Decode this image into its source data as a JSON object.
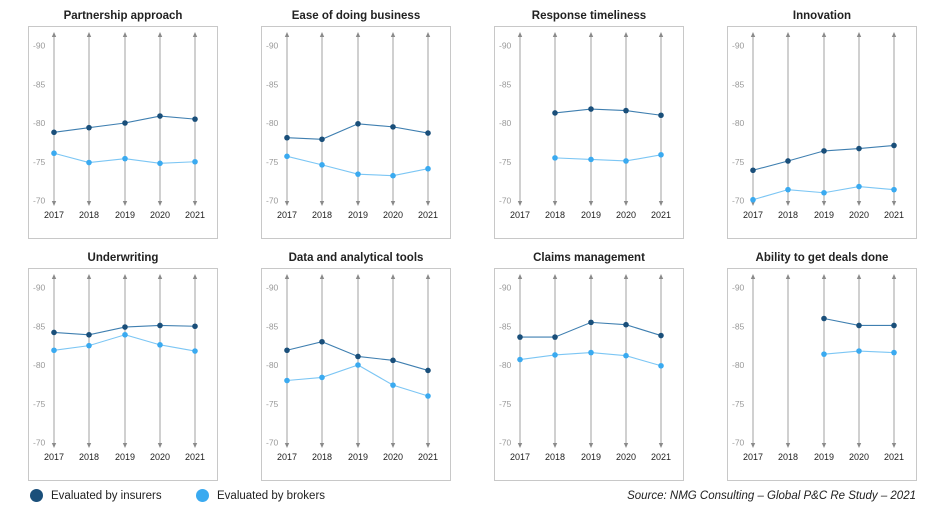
{
  "legend": {
    "insurers_label": "Evaluated by insurers",
    "brokers_label": "Evaluated by brokers",
    "insurers_color": "#1a4f7a",
    "brokers_color": "#3aaaf0"
  },
  "source": "Source: NMG Consulting – Global P&C Re Study – 2021",
  "chart_data": [
    {
      "type": "line",
      "title": "Partnership approach",
      "x": [
        "2017",
        "2018",
        "2019",
        "2020",
        "2021"
      ],
      "y_ticks": [
        "90",
        "85",
        "80",
        "75",
        "70"
      ],
      "ylim": [
        68,
        92
      ],
      "series": [
        {
          "name": "Evaluated by insurers",
          "values": [
            78.8,
            79.4,
            80.0,
            80.9,
            80.5
          ]
        },
        {
          "name": "Evaluated by brokers",
          "values": [
            76.1,
            74.9,
            75.4,
            74.8,
            75.0
          ]
        }
      ]
    },
    {
      "type": "line",
      "title": "Ease of doing business",
      "x": [
        "2017",
        "2018",
        "2019",
        "2020",
        "2021"
      ],
      "y_ticks": [
        "90",
        "85",
        "80",
        "75",
        "70"
      ],
      "ylim": [
        68,
        92
      ],
      "series": [
        {
          "name": "Evaluated by insurers",
          "values": [
            78.1,
            77.9,
            79.9,
            79.5,
            78.7
          ]
        },
        {
          "name": "Evaluated by brokers",
          "values": [
            75.7,
            74.6,
            73.4,
            73.2,
            74.1
          ]
        }
      ]
    },
    {
      "type": "line",
      "title": "Response timeliness",
      "x": [
        "2017",
        "2018",
        "2019",
        "2020",
        "2021"
      ],
      "y_ticks": [
        "90",
        "85",
        "80",
        "75",
        "70"
      ],
      "ylim": [
        68,
        92
      ],
      "series": [
        {
          "name": "Evaluated by insurers",
          "values": [
            null,
            81.3,
            81.8,
            81.6,
            81.0
          ]
        },
        {
          "name": "Evaluated by brokers",
          "values": [
            null,
            75.5,
            75.3,
            75.1,
            75.9
          ]
        }
      ]
    },
    {
      "type": "line",
      "title": "Innovation",
      "x": [
        "2017",
        "2018",
        "2019",
        "2020",
        "2021"
      ],
      "y_ticks": [
        "90",
        "85",
        "80",
        "75",
        "70"
      ],
      "ylim": [
        68,
        92
      ],
      "series": [
        {
          "name": "Evaluated by insurers",
          "values": [
            73.9,
            75.1,
            76.4,
            76.7,
            77.1
          ]
        },
        {
          "name": "Evaluated by brokers",
          "values": [
            70.1,
            71.4,
            71.0,
            71.8,
            71.4
          ]
        }
      ]
    },
    {
      "type": "line",
      "title": "Underwriting",
      "x": [
        "2017",
        "2018",
        "2019",
        "2020",
        "2021"
      ],
      "y_ticks": [
        "90",
        "85",
        "80",
        "75",
        "70"
      ],
      "ylim": [
        68,
        92
      ],
      "series": [
        {
          "name": "Evaluated by insurers",
          "values": [
            84.2,
            83.9,
            84.9,
            85.1,
            85.0
          ]
        },
        {
          "name": "Evaluated by brokers",
          "values": [
            81.9,
            82.5,
            83.9,
            82.6,
            81.8
          ]
        }
      ]
    },
    {
      "type": "line",
      "title": "Data and analytical tools",
      "x": [
        "2017",
        "2018",
        "2019",
        "2020",
        "2021"
      ],
      "y_ticks": [
        "90",
        "85",
        "80",
        "75",
        "70"
      ],
      "ylim": [
        68,
        92
      ],
      "series": [
        {
          "name": "Evaluated by insurers",
          "values": [
            81.9,
            83.0,
            81.1,
            80.6,
            79.3
          ]
        },
        {
          "name": "Evaluated by brokers",
          "values": [
            78.0,
            78.4,
            80.0,
            77.4,
            76.0
          ]
        }
      ]
    },
    {
      "type": "line",
      "title": "Claims management",
      "x": [
        "2017",
        "2018",
        "2019",
        "2020",
        "2021"
      ],
      "y_ticks": [
        "90",
        "85",
        "80",
        "75",
        "70"
      ],
      "ylim": [
        68,
        92
      ],
      "series": [
        {
          "name": "Evaluated by insurers",
          "values": [
            83.6,
            83.6,
            85.5,
            85.2,
            83.8
          ]
        },
        {
          "name": "Evaluated by brokers",
          "values": [
            80.7,
            81.3,
            81.6,
            81.2,
            79.9
          ]
        }
      ]
    },
    {
      "type": "line",
      "title": "Ability to get deals done",
      "x": [
        "2017",
        "2018",
        "2019",
        "2020",
        "2021"
      ],
      "y_ticks": [
        "90",
        "85",
        "80",
        "75",
        "70"
      ],
      "ylim": [
        68,
        92
      ],
      "series": [
        {
          "name": "Evaluated by insurers",
          "values": [
            null,
            null,
            86.0,
            85.1,
            85.1
          ]
        },
        {
          "name": "Evaluated by brokers",
          "values": [
            null,
            null,
            81.4,
            81.8,
            81.6
          ]
        }
      ]
    }
  ]
}
